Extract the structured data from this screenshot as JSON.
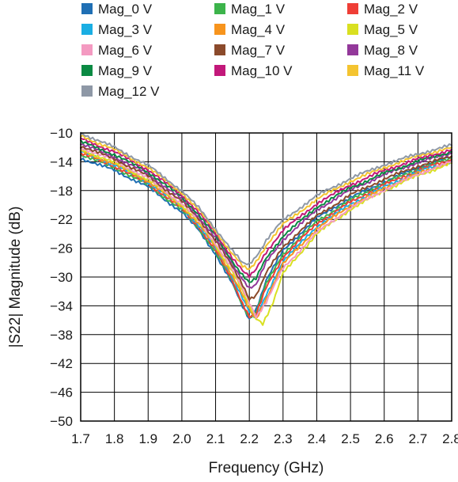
{
  "chart_data": {
    "type": "line",
    "title": "",
    "xlabel": "Frequency (GHz)",
    "ylabel": "|S22| Magnitude (dB)",
    "xlim": [
      1.7,
      2.8
    ],
    "ylim": [
      -50,
      -10
    ],
    "xticks": [
      "1.7",
      "1.8",
      "1.9",
      "2.0",
      "2.1",
      "2.2",
      "2.3",
      "2.4",
      "2.5",
      "2.6",
      "2.7",
      "2.8"
    ],
    "yticks": [
      "−10",
      "−14",
      "−18",
      "−22",
      "−26",
      "−30",
      "−34",
      "−38",
      "−42",
      "−46",
      "−50"
    ],
    "grid": true,
    "legend_position": "top",
    "series": [
      {
        "name": "Mag_0 V",
        "color": "#1f6fb4",
        "x": [
          1.7,
          1.8,
          1.9,
          2.0,
          2.05,
          2.1,
          2.15,
          2.18,
          2.2,
          2.22,
          2.25,
          2.3,
          2.4,
          2.5,
          2.6,
          2.7,
          2.8
        ],
        "y": [
          -13.5,
          -15.2,
          -17.5,
          -21.0,
          -23.5,
          -26.8,
          -31.0,
          -34.0,
          -35.8,
          -34.5,
          -30.5,
          -26.3,
          -21.8,
          -19.0,
          -16.8,
          -14.8,
          -13.3
        ]
      },
      {
        "name": "Mag_1 V",
        "color": "#3cb44b",
        "x": [
          1.7,
          1.8,
          1.9,
          2.0,
          2.05,
          2.1,
          2.15,
          2.18,
          2.2,
          2.22,
          2.25,
          2.3,
          2.4,
          2.5,
          2.6,
          2.7,
          2.8
        ],
        "y": [
          -13.0,
          -14.8,
          -17.2,
          -20.7,
          -23.2,
          -26.5,
          -30.7,
          -33.8,
          -35.6,
          -34.8,
          -31.0,
          -26.8,
          -22.3,
          -19.3,
          -17.0,
          -15.0,
          -13.5
        ]
      },
      {
        "name": "Mag_2 V",
        "color": "#ef3e36",
        "x": [
          1.7,
          1.8,
          1.9,
          2.0,
          2.05,
          2.1,
          2.15,
          2.18,
          2.2,
          2.22,
          2.25,
          2.3,
          2.4,
          2.5,
          2.6,
          2.7,
          2.8
        ],
        "y": [
          -12.8,
          -14.6,
          -17.0,
          -20.5,
          -23.0,
          -26.3,
          -30.5,
          -33.7,
          -35.5,
          -35.2,
          -31.5,
          -27.2,
          -22.6,
          -19.6,
          -17.2,
          -15.2,
          -13.7
        ]
      },
      {
        "name": "Mag_3 V",
        "color": "#1aaee3",
        "x": [
          1.7,
          1.8,
          1.9,
          2.0,
          2.05,
          2.1,
          2.15,
          2.18,
          2.2,
          2.22,
          2.25,
          2.3,
          2.4,
          2.5,
          2.6,
          2.7,
          2.8
        ],
        "y": [
          -12.6,
          -14.4,
          -16.8,
          -20.3,
          -22.8,
          -26.0,
          -30.0,
          -33.0,
          -34.8,
          -35.8,
          -32.5,
          -27.8,
          -23.0,
          -19.9,
          -17.5,
          -15.4,
          -13.9
        ]
      },
      {
        "name": "Mag_4 V",
        "color": "#f7941d",
        "x": [
          1.7,
          1.8,
          1.9,
          2.0,
          2.05,
          2.1,
          2.15,
          2.18,
          2.2,
          2.22,
          2.25,
          2.3,
          2.4,
          2.5,
          2.6,
          2.7,
          2.8
        ],
        "y": [
          -12.5,
          -14.3,
          -16.7,
          -20.2,
          -22.6,
          -25.8,
          -29.8,
          -32.6,
          -34.5,
          -36.0,
          -33.0,
          -28.2,
          -23.3,
          -20.1,
          -17.7,
          -15.6,
          -14.0
        ]
      },
      {
        "name": "Mag_5 V",
        "color": "#d9e021",
        "x": [
          1.7,
          1.8,
          1.9,
          2.0,
          2.05,
          2.1,
          2.15,
          2.18,
          2.2,
          2.22,
          2.24,
          2.27,
          2.3,
          2.4,
          2.5,
          2.6,
          2.7,
          2.8
        ],
        "y": [
          -12.3,
          -14.1,
          -16.5,
          -20.0,
          -22.4,
          -25.5,
          -29.3,
          -32.0,
          -34.0,
          -35.8,
          -36.6,
          -33.5,
          -29.5,
          -24.0,
          -20.6,
          -18.0,
          -15.9,
          -14.2
        ]
      },
      {
        "name": "Mag_6 V",
        "color": "#f49ac1",
        "x": [
          1.7,
          1.8,
          1.9,
          2.0,
          2.05,
          2.1,
          2.15,
          2.18,
          2.2,
          2.22,
          2.25,
          2.3,
          2.4,
          2.5,
          2.6,
          2.7,
          2.8
        ],
        "y": [
          -12.0,
          -13.8,
          -16.3,
          -19.8,
          -22.2,
          -25.3,
          -29.0,
          -31.5,
          -33.5,
          -35.5,
          -33.5,
          -28.8,
          -23.8,
          -20.4,
          -17.9,
          -15.7,
          -14.0
        ]
      },
      {
        "name": "Mag_7 V",
        "color": "#8b4a2b",
        "x": [
          1.7,
          1.8,
          1.9,
          2.0,
          2.05,
          2.1,
          2.15,
          2.18,
          2.2,
          2.22,
          2.25,
          2.3,
          2.4,
          2.5,
          2.6,
          2.7,
          2.8
        ],
        "y": [
          -11.8,
          -13.6,
          -16.0,
          -19.5,
          -21.9,
          -24.9,
          -28.6,
          -31.0,
          -33.0,
          -32.5,
          -29.5,
          -25.8,
          -21.5,
          -18.6,
          -16.4,
          -14.6,
          -13.2
        ]
      },
      {
        "name": "Mag_8 V",
        "color": "#93389a",
        "x": [
          1.7,
          1.8,
          1.9,
          2.0,
          2.05,
          2.1,
          2.15,
          2.18,
          2.2,
          2.22,
          2.25,
          2.3,
          2.4,
          2.5,
          2.6,
          2.7,
          2.8
        ],
        "y": [
          -11.5,
          -13.3,
          -15.7,
          -19.2,
          -21.6,
          -24.6,
          -28.2,
          -30.3,
          -31.5,
          -31.0,
          -28.0,
          -24.8,
          -20.7,
          -17.9,
          -15.8,
          -14.1,
          -12.8
        ]
      },
      {
        "name": "Mag_9 V",
        "color": "#0a8a43",
        "x": [
          1.7,
          1.8,
          1.9,
          2.0,
          2.05,
          2.1,
          2.15,
          2.18,
          2.2,
          2.22,
          2.25,
          2.3,
          2.4,
          2.5,
          2.6,
          2.7,
          2.8
        ],
        "y": [
          -11.2,
          -13.0,
          -15.4,
          -18.9,
          -21.3,
          -24.3,
          -27.8,
          -29.8,
          -30.8,
          -30.2,
          -27.4,
          -24.3,
          -20.3,
          -17.6,
          -15.6,
          -13.9,
          -12.6
        ]
      },
      {
        "name": "Mag_10 V",
        "color": "#c2187a",
        "x": [
          1.7,
          1.8,
          1.9,
          2.0,
          2.05,
          2.1,
          2.15,
          2.18,
          2.2,
          2.22,
          2.25,
          2.3,
          2.4,
          2.5,
          2.6,
          2.7,
          2.8
        ],
        "y": [
          -10.8,
          -12.6,
          -15.1,
          -18.6,
          -21.0,
          -24.0,
          -27.3,
          -29.2,
          -30.0,
          -29.0,
          -26.5,
          -23.5,
          -19.8,
          -17.2,
          -15.2,
          -13.6,
          -12.3
        ]
      },
      {
        "name": "Mag_11 V",
        "color": "#f4c430",
        "x": [
          1.7,
          1.8,
          1.9,
          2.0,
          2.05,
          2.1,
          2.15,
          2.18,
          2.2,
          2.22,
          2.25,
          2.3,
          2.4,
          2.5,
          2.6,
          2.7,
          2.8
        ],
        "y": [
          -10.4,
          -12.3,
          -14.8,
          -18.3,
          -20.7,
          -23.6,
          -26.8,
          -28.5,
          -29.0,
          -28.0,
          -25.6,
          -22.7,
          -19.2,
          -16.7,
          -14.8,
          -13.2,
          -12.0
        ]
      },
      {
        "name": "Mag_12 V",
        "color": "#8e98a6",
        "x": [
          1.7,
          1.8,
          1.9,
          2.0,
          2.05,
          2.1,
          2.15,
          2.18,
          2.2,
          2.22,
          2.25,
          2.3,
          2.4,
          2.5,
          2.6,
          2.7,
          2.8
        ],
        "y": [
          -10.0,
          -12.0,
          -14.5,
          -18.0,
          -20.4,
          -23.3,
          -26.4,
          -28.0,
          -28.2,
          -27.2,
          -24.9,
          -22.1,
          -18.7,
          -16.3,
          -14.4,
          -12.9,
          -11.7
        ]
      }
    ]
  }
}
